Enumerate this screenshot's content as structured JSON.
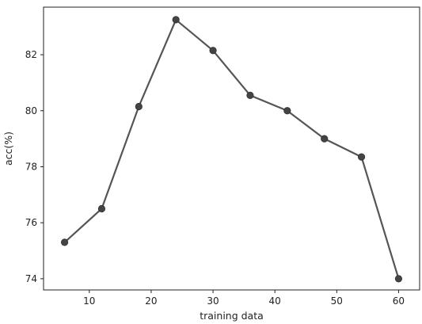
{
  "chart_data": {
    "type": "line",
    "title": "",
    "xlabel": "training data",
    "ylabel": "acc(%)",
    "x": [
      6,
      12,
      18,
      24,
      30,
      36,
      42,
      48,
      54,
      60
    ],
    "series": [
      {
        "values": [
          75.3,
          76.5,
          80.15,
          83.25,
          82.15,
          80.55,
          80.0,
          79.0,
          78.35,
          74.0
        ],
        "color": "#555555"
      }
    ],
    "xlim": [
      2.6,
      63.4
    ],
    "ylim": [
      73.6,
      83.7
    ],
    "xticks": [
      10,
      20,
      30,
      40,
      50,
      60
    ],
    "yticks": [
      74,
      76,
      78,
      80,
      82
    ],
    "grid": false,
    "legend": "none"
  }
}
